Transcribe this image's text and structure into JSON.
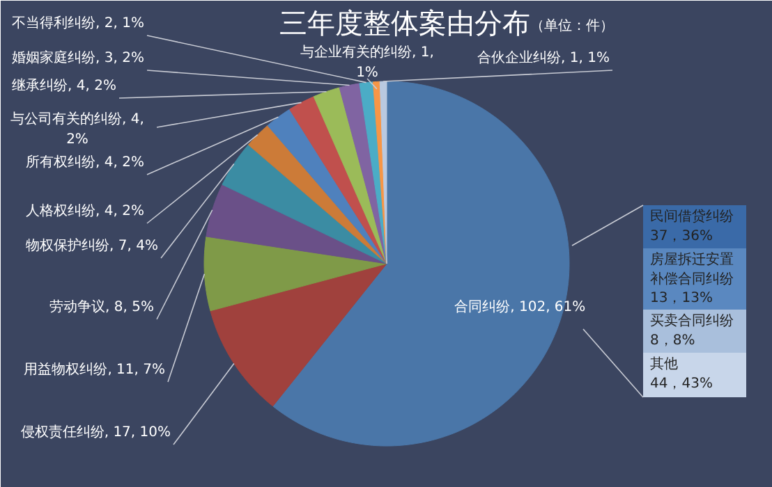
{
  "chart_data": {
    "type": "pie",
    "title": "三年度整体案由分布",
    "subtitle": "（单位：件）",
    "categories": [
      "合同纠纷",
      "侵权责任纠纷",
      "用益物权纠纷",
      "劳动争议",
      "物权保护纠纷",
      "人格权纠纷",
      "所有权纠纷",
      "与公司有关的纠纷",
      "继承纠纷",
      "婚姻家庭纠纷",
      "不当得利纠纷",
      "与企业有关的纠纷",
      "合伙企业纠纷"
    ],
    "values": [
      102,
      17,
      11,
      8,
      7,
      4,
      4,
      4,
      4,
      3,
      2,
      1,
      1
    ],
    "colors": [
      "#4a76a8",
      "#a0413d",
      "#7f9a48",
      "#6a5088",
      "#3b8ca3",
      "#cc7b38",
      "#4f81bd",
      "#c0504d",
      "#9bbb59",
      "#8064a2",
      "#4bacc6",
      "#f79646",
      "#b9c9e0"
    ],
    "value_labels": [
      "102, 61%",
      "17, 10%",
      "11, 7%",
      "8, 5%",
      "7, 4%",
      "4, 2%",
      "4, 2%",
      "4, 2%",
      "4, 2%",
      "3, 2%",
      "2, 1%",
      "1, 1%",
      "1, 1%"
    ],
    "annotations": [
      "民间借贷纠纷\n37，36%",
      "房屋拆迁安置补偿合同纠纷\n13，13%",
      "买卖合同纠纷\n8，8%",
      "其他\n44，43%"
    ]
  }
}
